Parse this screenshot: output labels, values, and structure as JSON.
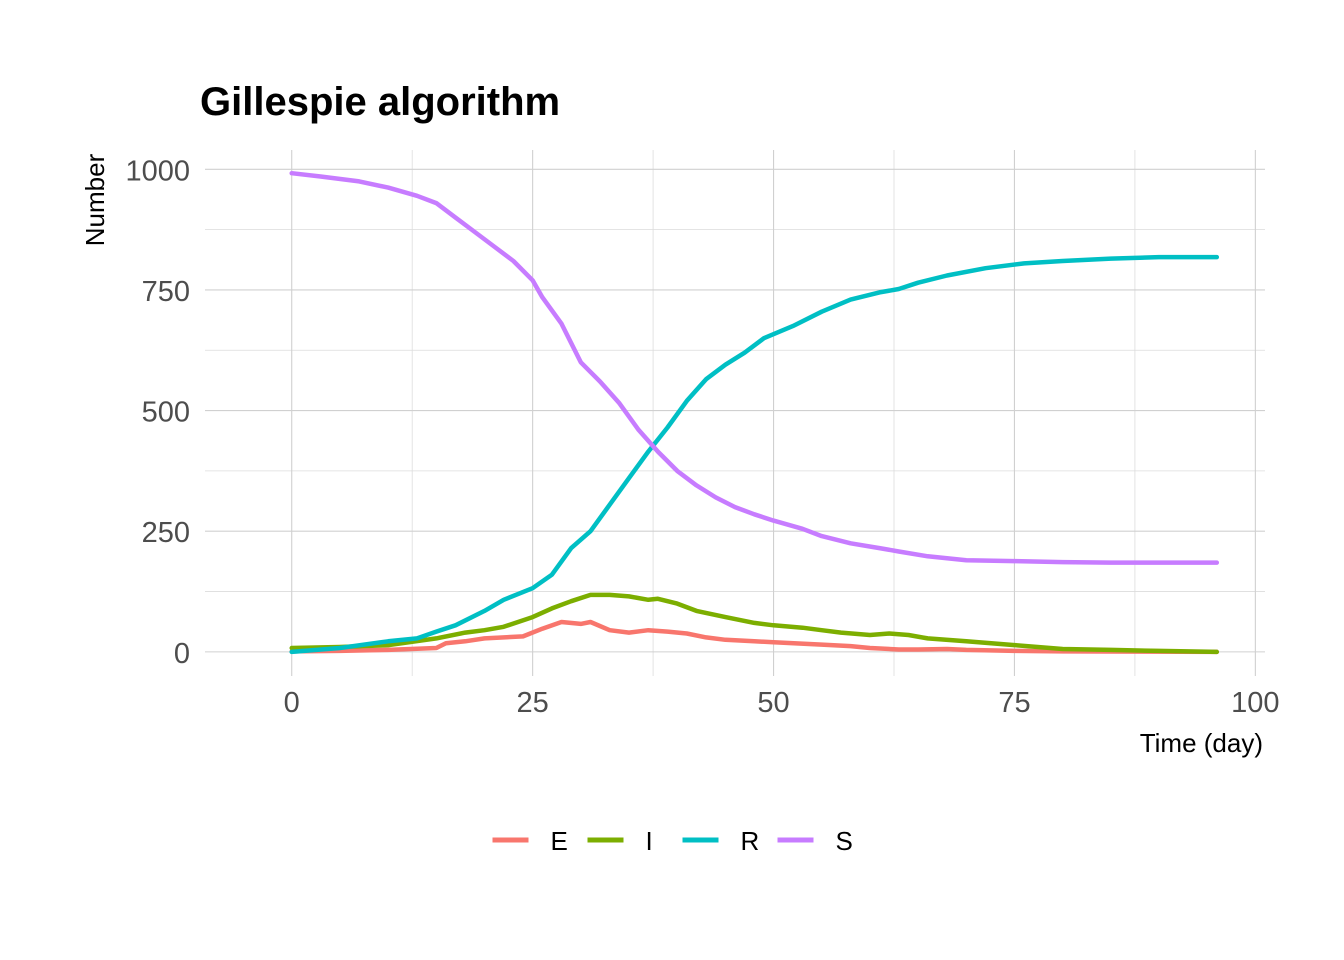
{
  "chart_data": {
    "type": "line",
    "title": "Gillespie algorithm",
    "xlabel": "Time (day)",
    "ylabel": "Number",
    "xlim": [
      -9,
      101
    ],
    "ylim": [
      -50,
      1040
    ],
    "x_ticks": [
      0,
      25,
      50,
      75,
      100
    ],
    "y_ticks": [
      0,
      250,
      500,
      750,
      1000
    ],
    "grid": true,
    "legend_position": "bottom",
    "series": [
      {
        "name": "E",
        "color": "#F8766D",
        "points": [
          [
            0,
            1
          ],
          [
            5,
            2
          ],
          [
            10,
            4
          ],
          [
            15,
            8
          ],
          [
            16,
            18
          ],
          [
            18,
            22
          ],
          [
            20,
            28
          ],
          [
            24,
            32
          ],
          [
            26,
            48
          ],
          [
            28,
            62
          ],
          [
            30,
            58
          ],
          [
            31,
            62
          ],
          [
            33,
            45
          ],
          [
            35,
            40
          ],
          [
            37,
            45
          ],
          [
            39,
            42
          ],
          [
            41,
            38
          ],
          [
            43,
            30
          ],
          [
            45,
            25
          ],
          [
            48,
            22
          ],
          [
            50,
            20
          ],
          [
            55,
            15
          ],
          [
            58,
            12
          ],
          [
            60,
            8
          ],
          [
            63,
            5
          ],
          [
            65,
            5
          ],
          [
            68,
            6
          ],
          [
            70,
            4
          ],
          [
            75,
            2
          ],
          [
            80,
            1
          ],
          [
            96,
            0
          ]
        ]
      },
      {
        "name": "I",
        "color": "#7CAE00",
        "points": [
          [
            0,
            8
          ],
          [
            5,
            10
          ],
          [
            10,
            14
          ],
          [
            15,
            28
          ],
          [
            18,
            40
          ],
          [
            20,
            45
          ],
          [
            22,
            52
          ],
          [
            25,
            72
          ],
          [
            27,
            90
          ],
          [
            29,
            105
          ],
          [
            31,
            118
          ],
          [
            33,
            118
          ],
          [
            35,
            115
          ],
          [
            37,
            108
          ],
          [
            38,
            110
          ],
          [
            40,
            100
          ],
          [
            42,
            85
          ],
          [
            45,
            72
          ],
          [
            48,
            60
          ],
          [
            50,
            55
          ],
          [
            53,
            50
          ],
          [
            55,
            45
          ],
          [
            57,
            40
          ],
          [
            60,
            35
          ],
          [
            62,
            38
          ],
          [
            64,
            35
          ],
          [
            66,
            28
          ],
          [
            70,
            22
          ],
          [
            75,
            14
          ],
          [
            80,
            6
          ],
          [
            85,
            4
          ],
          [
            90,
            2
          ],
          [
            96,
            0
          ]
        ]
      },
      {
        "name": "R",
        "color": "#00BFC4",
        "points": [
          [
            0,
            0
          ],
          [
            5,
            8
          ],
          [
            10,
            22
          ],
          [
            13,
            28
          ],
          [
            15,
            42
          ],
          [
            17,
            55
          ],
          [
            20,
            85
          ],
          [
            22,
            108
          ],
          [
            25,
            132
          ],
          [
            27,
            160
          ],
          [
            29,
            215
          ],
          [
            31,
            250
          ],
          [
            33,
            305
          ],
          [
            35,
            360
          ],
          [
            37,
            415
          ],
          [
            39,
            465
          ],
          [
            41,
            520
          ],
          [
            43,
            565
          ],
          [
            45,
            595
          ],
          [
            47,
            620
          ],
          [
            49,
            650
          ],
          [
            52,
            675
          ],
          [
            55,
            705
          ],
          [
            58,
            730
          ],
          [
            61,
            745
          ],
          [
            63,
            752
          ],
          [
            65,
            765
          ],
          [
            68,
            780
          ],
          [
            72,
            795
          ],
          [
            76,
            805
          ],
          [
            80,
            810
          ],
          [
            85,
            815
          ],
          [
            90,
            818
          ],
          [
            96,
            818
          ]
        ]
      },
      {
        "name": "S",
        "color": "#C77CFF",
        "points": [
          [
            0,
            992
          ],
          [
            3,
            985
          ],
          [
            7,
            975
          ],
          [
            10,
            962
          ],
          [
            13,
            945
          ],
          [
            15,
            930
          ],
          [
            17,
            900
          ],
          [
            19,
            870
          ],
          [
            21,
            840
          ],
          [
            23,
            810
          ],
          [
            25,
            770
          ],
          [
            26,
            735
          ],
          [
            28,
            680
          ],
          [
            30,
            600
          ],
          [
            32,
            560
          ],
          [
            34,
            515
          ],
          [
            36,
            460
          ],
          [
            38,
            415
          ],
          [
            40,
            375
          ],
          [
            42,
            345
          ],
          [
            44,
            320
          ],
          [
            46,
            300
          ],
          [
            48,
            285
          ],
          [
            50,
            272
          ],
          [
            53,
            255
          ],
          [
            55,
            240
          ],
          [
            58,
            225
          ],
          [
            61,
            215
          ],
          [
            63,
            208
          ],
          [
            66,
            198
          ],
          [
            70,
            190
          ],
          [
            75,
            188
          ],
          [
            80,
            186
          ],
          [
            85,
            185
          ],
          [
            90,
            185
          ],
          [
            96,
            185
          ]
        ]
      }
    ]
  }
}
